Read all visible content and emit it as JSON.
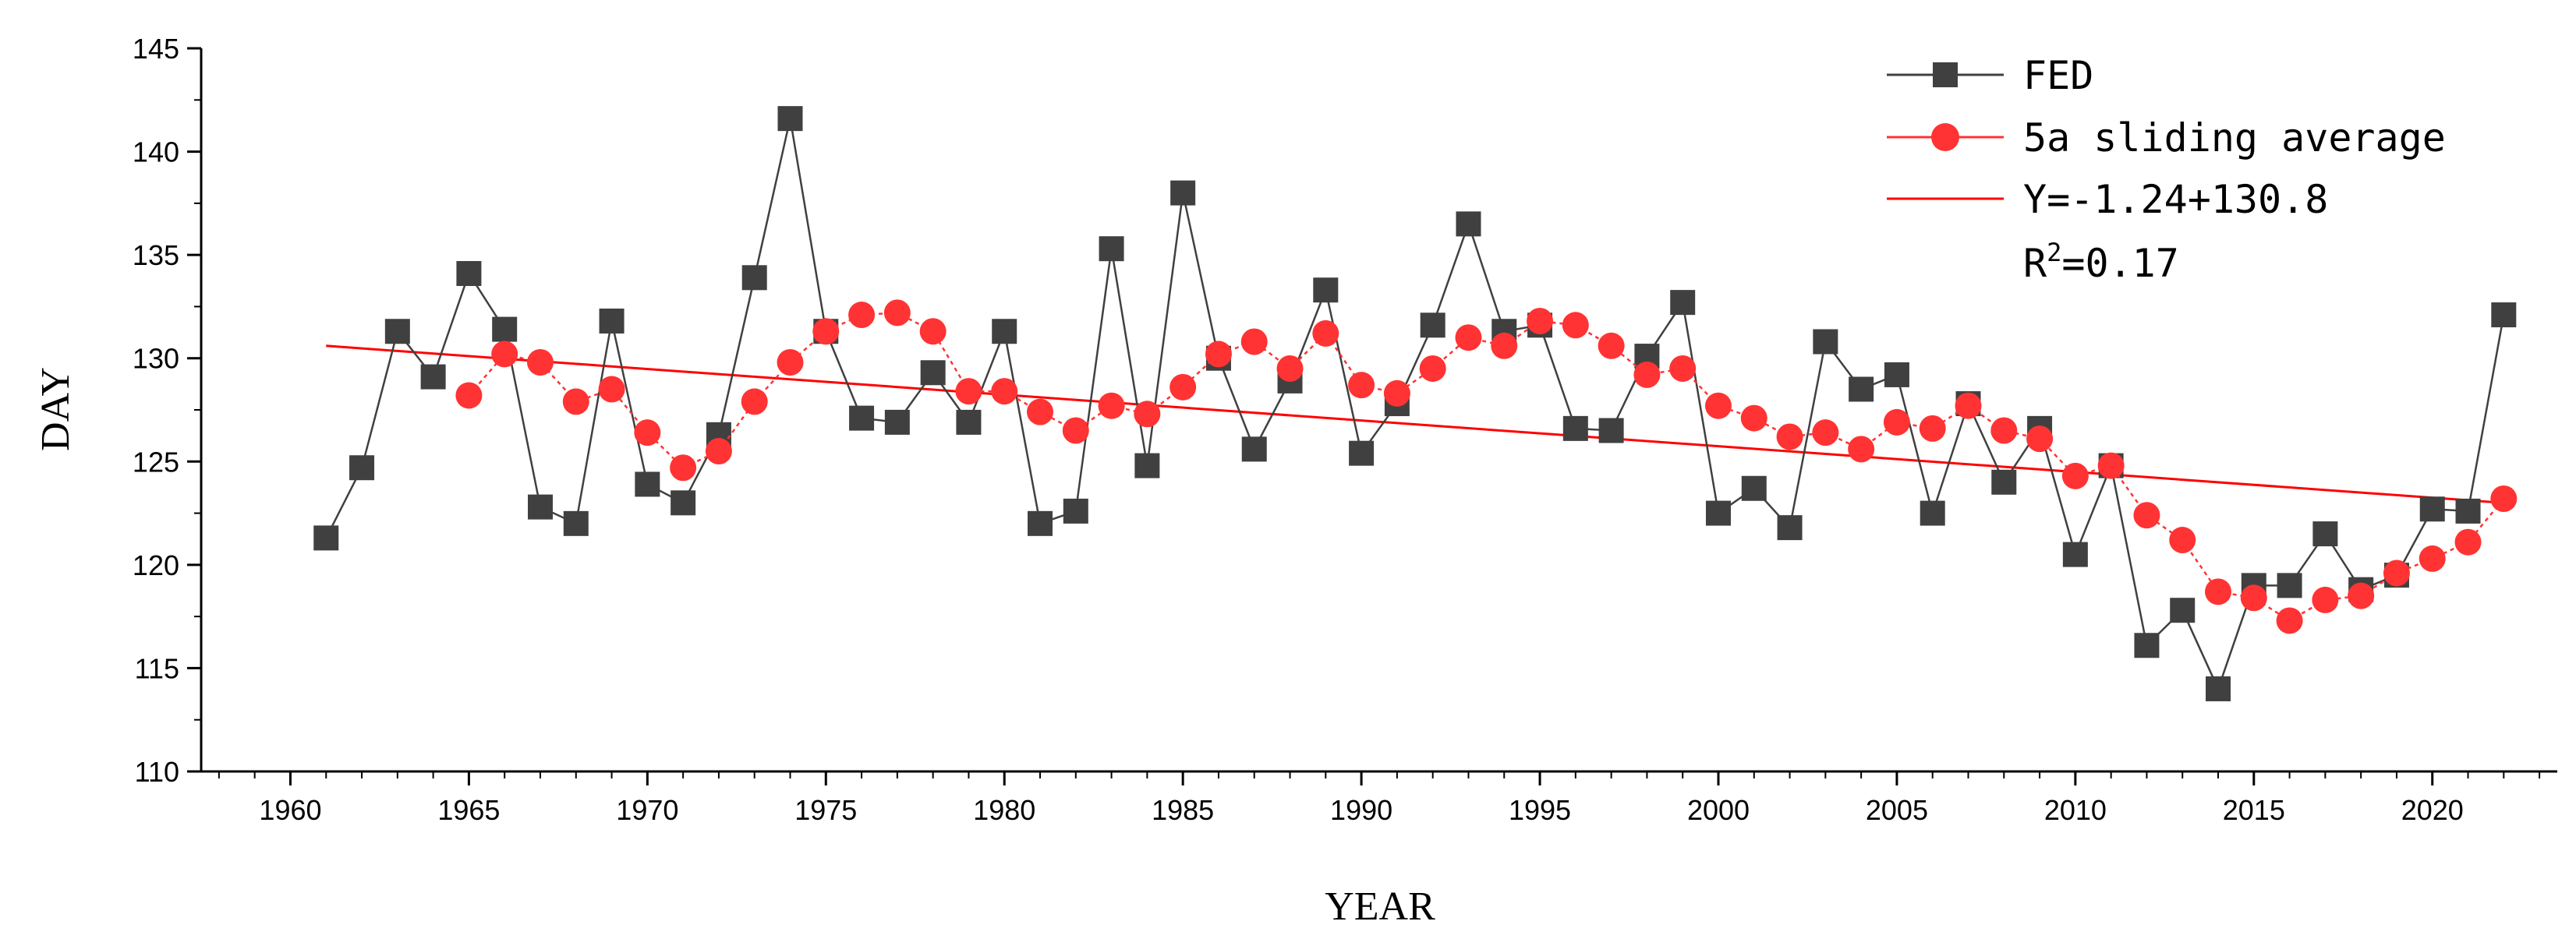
{
  "chart_data": {
    "type": "line",
    "title": "",
    "xlabel": "YEAR",
    "ylabel": "DAY",
    "xlim": [
      1957.5,
      2023.5
    ],
    "ylim": [
      110,
      145
    ],
    "x_ticks": [
      1960,
      1965,
      1970,
      1975,
      1980,
      1985,
      1990,
      1995,
      2000,
      2005,
      2010,
      2015,
      2020
    ],
    "y_ticks": [
      110,
      115,
      120,
      125,
      130,
      135,
      140,
      145
    ],
    "grid": false,
    "legend_position": "top-right",
    "series": [
      {
        "name": "FED",
        "color": "#404040",
        "marker": "square",
        "x": [
          1961,
          1962,
          1963,
          1964,
          1965,
          1966,
          1967,
          1968,
          1969,
          1970,
          1971,
          1972,
          1973,
          1974,
          1975,
          1976,
          1977,
          1978,
          1979,
          1980,
          1981,
          1982,
          1983,
          1984,
          1985,
          1986,
          1987,
          1988,
          1989,
          1990,
          1991,
          1992,
          1993,
          1994,
          1995,
          1996,
          1997,
          1998,
          1999,
          2000,
          2001,
          2002,
          2003,
          2004,
          2005,
          2006,
          2007,
          2008,
          2009,
          2010,
          2011,
          2012,
          2013,
          2014,
          2015,
          2016,
          2017,
          2018,
          2019,
          2020,
          2021,
          2022
        ],
        "values": [
          121.3,
          124.7,
          131.3,
          129.1,
          134.1,
          131.4,
          122.8,
          122.0,
          131.8,
          123.9,
          123.0,
          126.3,
          133.9,
          141.6,
          131.3,
          127.1,
          126.9,
          129.3,
          126.9,
          131.3,
          122.0,
          122.6,
          135.3,
          124.8,
          138.0,
          130.0,
          125.6,
          128.9,
          133.3,
          125.4,
          127.8,
          131.6,
          136.5,
          131.3,
          131.6,
          126.6,
          126.5,
          130.1,
          132.7,
          122.5,
          123.7,
          121.8,
          130.8,
          128.5,
          129.2,
          122.5,
          127.8,
          124.0,
          126.6,
          120.5,
          124.8,
          116.1,
          117.8,
          114.0,
          119.0,
          119.0,
          121.5,
          118.8,
          119.5,
          122.7,
          122.6,
          132.1
        ]
      },
      {
        "name": "5a sliding average",
        "color": "#ff3333",
        "marker": "circle",
        "x": [
          1965,
          1966,
          1967,
          1968,
          1969,
          1970,
          1971,
          1972,
          1973,
          1974,
          1975,
          1976,
          1977,
          1978,
          1979,
          1980,
          1981,
          1982,
          1983,
          1984,
          1985,
          1986,
          1987,
          1988,
          1989,
          1990,
          1991,
          1992,
          1993,
          1994,
          1995,
          1996,
          1997,
          1998,
          1999,
          2000,
          2001,
          2002,
          2003,
          2004,
          2005,
          2006,
          2007,
          2008,
          2009,
          2010,
          2011,
          2012,
          2013,
          2014,
          2015,
          2016,
          2017,
          2018,
          2019,
          2020,
          2021,
          2022
        ],
        "values": [
          128.2,
          130.2,
          129.8,
          127.9,
          128.5,
          126.4,
          124.7,
          125.5,
          127.9,
          129.8,
          131.3,
          132.1,
          132.2,
          131.3,
          128.4,
          128.4,
          127.4,
          126.5,
          127.7,
          127.3,
          128.6,
          130.2,
          130.8,
          129.5,
          131.2,
          128.7,
          128.3,
          129.5,
          131.0,
          130.6,
          131.8,
          131.6,
          130.6,
          129.2,
          129.5,
          127.7,
          127.1,
          126.2,
          126.4,
          125.6,
          126.9,
          126.6,
          127.7,
          126.5,
          126.1,
          124.3,
          124.8,
          122.4,
          121.2,
          118.7,
          118.4,
          117.3,
          118.3,
          118.5,
          119.6,
          120.3,
          121.1,
          123.2
        ]
      },
      {
        "name": "Y=-1.24+130.8",
        "color": "#ff0000",
        "marker": "none",
        "x": [
          1961,
          2022
        ],
        "values": [
          130.6,
          123.0
        ]
      }
    ],
    "annotations": [
      "R2=0.17"
    ]
  },
  "legend": {
    "fed": "FED",
    "sliding": "5a sliding average",
    "fit": "Y=-1.24+130.8",
    "r2_prefix": "R",
    "r2_sup": "2",
    "r2_value": "=0.17"
  },
  "colors": {
    "fed": "#404040",
    "sliding": "#ff3333",
    "fit": "#ff0000",
    "axis": "#000000"
  }
}
